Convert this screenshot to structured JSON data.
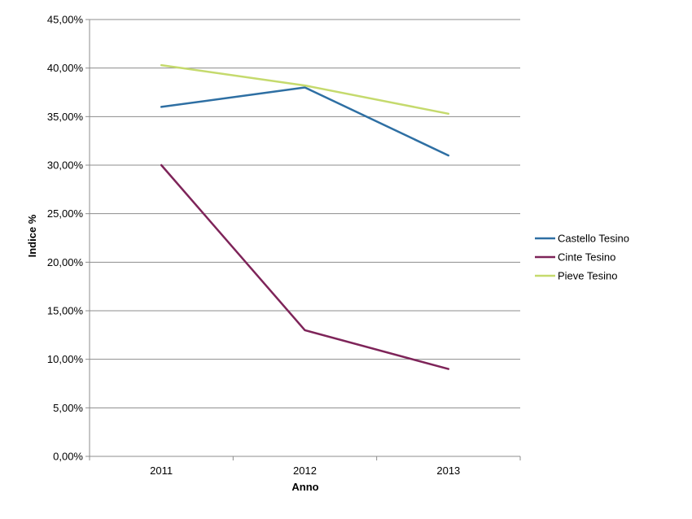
{
  "chart_data": {
    "type": "line",
    "title": "",
    "xlabel": "Anno",
    "ylabel": "Indice %",
    "categories": [
      "2011",
      "2012",
      "2013"
    ],
    "ylim": [
      0,
      45
    ],
    "yticks": [
      0,
      5,
      10,
      15,
      20,
      25,
      30,
      35,
      40,
      45
    ],
    "ytick_labels": [
      "0,00%",
      "5,00%",
      "10,00%",
      "15,00%",
      "20,00%",
      "25,00%",
      "30,00%",
      "35,00%",
      "40,00%",
      "45,00%"
    ],
    "grid": true,
    "legend_position": "right",
    "series": [
      {
        "name": "Castello Tesino",
        "values": [
          36.0,
          38.0,
          31.0
        ],
        "color": "#2e6fa3"
      },
      {
        "name": "Cinte Tesino",
        "values": [
          30.0,
          13.0,
          9.0
        ],
        "color": "#7e2459"
      },
      {
        "name": "Pieve Tesino",
        "values": [
          40.3,
          38.2,
          35.3
        ],
        "color": "#c5da6d"
      }
    ]
  }
}
